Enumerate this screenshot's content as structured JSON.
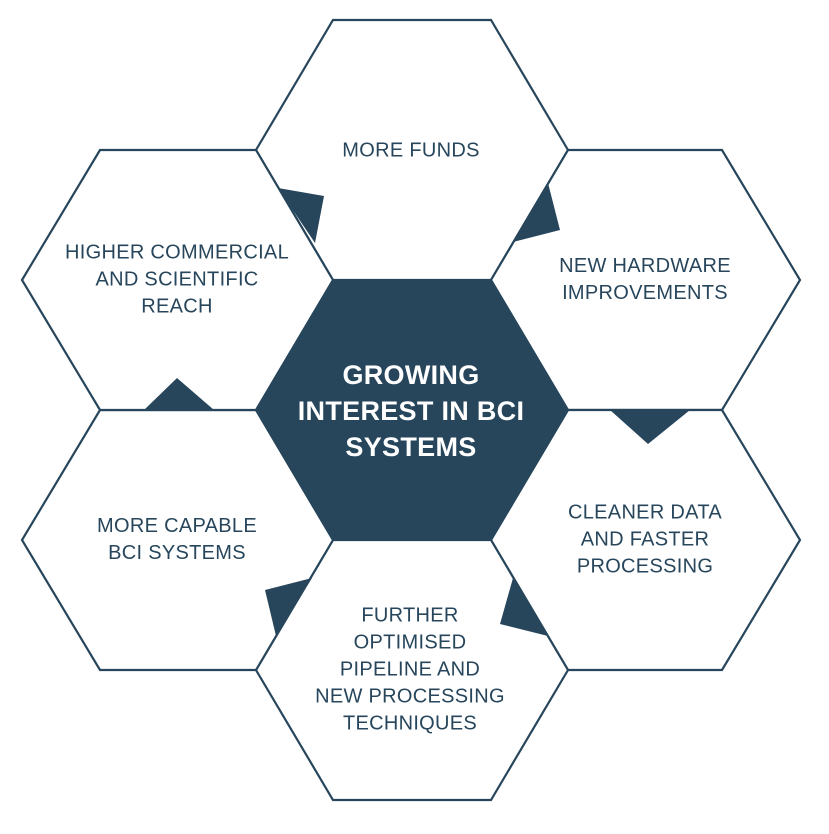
{
  "diagram": {
    "center": {
      "lines": [
        "GROWING",
        "INTEREST IN BCI",
        "SYSTEMS"
      ]
    },
    "cells": [
      {
        "id": "top",
        "lines": [
          "MORE FUNDS"
        ]
      },
      {
        "id": "upper-right",
        "lines": [
          "NEW HARDWARE",
          "IMPROVEMENTS"
        ]
      },
      {
        "id": "lower-right",
        "lines": [
          "CLEANER DATA",
          "AND FASTER",
          "PROCESSING"
        ]
      },
      {
        "id": "bottom",
        "lines": [
          "FURTHER",
          "OPTIMISED",
          "PIPELINE AND",
          "NEW PROCESSING",
          "TECHNIQUES"
        ]
      },
      {
        "id": "lower-left",
        "lines": [
          "MORE CAPABLE",
          "BCI SYSTEMS"
        ]
      },
      {
        "id": "upper-left",
        "lines": [
          "HIGHER COMMERCIAL",
          "AND SCIENTIFIC",
          "REACH"
        ]
      }
    ],
    "colors": {
      "primary": "#27465c",
      "background": "#ffffff",
      "center_text": "#ffffff"
    }
  }
}
